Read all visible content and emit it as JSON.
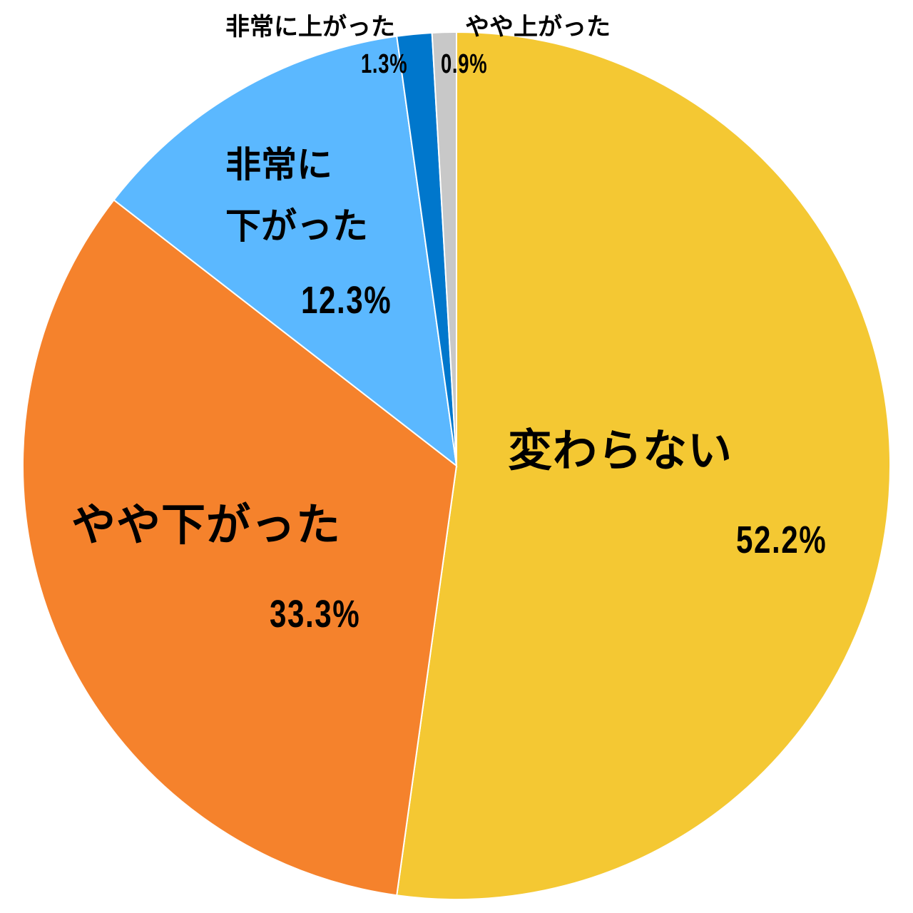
{
  "chart_data": {
    "type": "pie",
    "start_angle_deg": 0,
    "direction": "clockwise",
    "slices": [
      {
        "label": "変わらない",
        "value": 52.2,
        "value_label": "52.2%",
        "color": "#F4C833"
      },
      {
        "label": "やや下がった",
        "value": 33.3,
        "value_label": "33.3%",
        "color": "#F5822C"
      },
      {
        "label": "非常に下がった",
        "label_lines": [
          "非常に",
          "下がった"
        ],
        "value": 12.3,
        "value_label": "12.3%",
        "color": "#5BB8FF"
      },
      {
        "label": "非常に上がった",
        "value": 1.3,
        "value_label": "1.3%",
        "color": "#0077CC"
      },
      {
        "label": "やや上がった",
        "value": 0.9,
        "value_label": "0.9%",
        "color": "#C8C8C8"
      }
    ]
  }
}
